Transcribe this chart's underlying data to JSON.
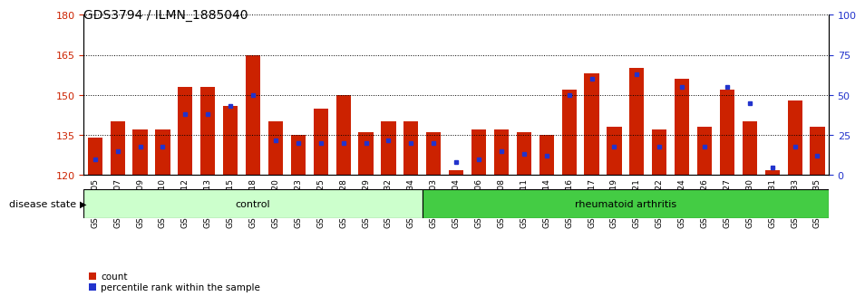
{
  "title": "GDS3794 / ILMN_1885040",
  "samples": [
    "GSM389705",
    "GSM389707",
    "GSM389709",
    "GSM389710",
    "GSM389712",
    "GSM389713",
    "GSM389715",
    "GSM389718",
    "GSM389720",
    "GSM389723",
    "GSM389725",
    "GSM389728",
    "GSM389729",
    "GSM389732",
    "GSM389734",
    "GSM389703",
    "GSM389704",
    "GSM389706",
    "GSM389708",
    "GSM389711",
    "GSM389714",
    "GSM389716",
    "GSM389717",
    "GSM389719",
    "GSM389721",
    "GSM389722",
    "GSM389724",
    "GSM389726",
    "GSM389727",
    "GSM389730",
    "GSM389731",
    "GSM389733",
    "GSM389735"
  ],
  "counts": [
    134,
    140,
    137,
    137,
    153,
    153,
    146,
    165,
    140,
    135,
    145,
    150,
    136,
    140,
    140,
    136,
    122,
    137,
    137,
    136,
    135,
    152,
    158,
    138,
    160,
    137,
    156,
    138,
    152,
    140,
    122,
    148,
    138
  ],
  "percentile_ranks": [
    10,
    15,
    18,
    18,
    38,
    38,
    43,
    50,
    22,
    20,
    20,
    20,
    20,
    22,
    20,
    20,
    8,
    10,
    15,
    13,
    12,
    50,
    60,
    18,
    63,
    18,
    55,
    18,
    55,
    45,
    5,
    18,
    12
  ],
  "group_labels": [
    "control",
    "rheumatoid arthritis"
  ],
  "n_control": 15,
  "n_ra": 18,
  "ymin": 120,
  "ymax": 180,
  "yticks_left": [
    120,
    135,
    150,
    165,
    180
  ],
  "yticks_right": [
    0,
    25,
    50,
    75,
    100
  ],
  "bar_color": "#cc2200",
  "percentile_color": "#2233cc",
  "control_bg": "#ccffcc",
  "ra_bg": "#44cc44",
  "title_fontsize": 10,
  "axis_label_color_left": "#cc2200",
  "axis_label_color_right": "#2233cc"
}
